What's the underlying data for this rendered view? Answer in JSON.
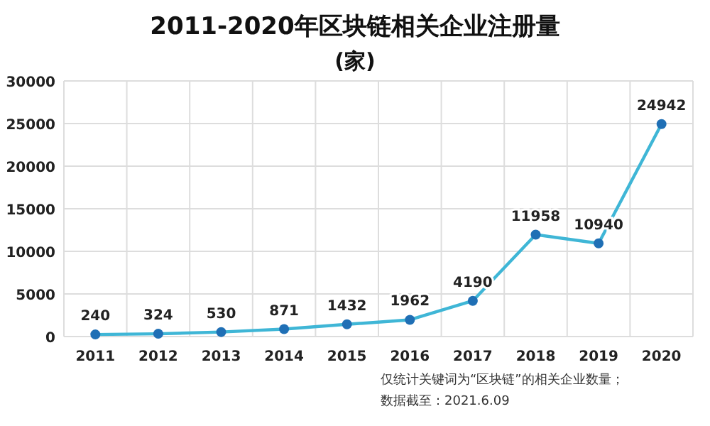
{
  "chart_data": {
    "type": "line",
    "title": "2011-2020年区块链相关企业注册量",
    "subtitle": "(家)",
    "categories": [
      "2011",
      "2012",
      "2013",
      "2014",
      "2015",
      "2016",
      "2017",
      "2018",
      "2019",
      "2020"
    ],
    "series": [
      {
        "color": "#3fb6d6",
        "values": [
          240,
          324,
          530,
          871,
          1432,
          1962,
          4190,
          11958,
          10940,
          24942
        ]
      }
    ],
    "marker": "circle",
    "data_labels": true,
    "grid": true,
    "ylim": [
      0,
      30000
    ],
    "yticks": [
      0,
      5000,
      10000,
      15000,
      20000,
      25000,
      30000
    ],
    "annotations": [
      "仅统计关键词为“区块链”的相关企业数量；",
      "数据截至：2021.6.09"
    ]
  }
}
